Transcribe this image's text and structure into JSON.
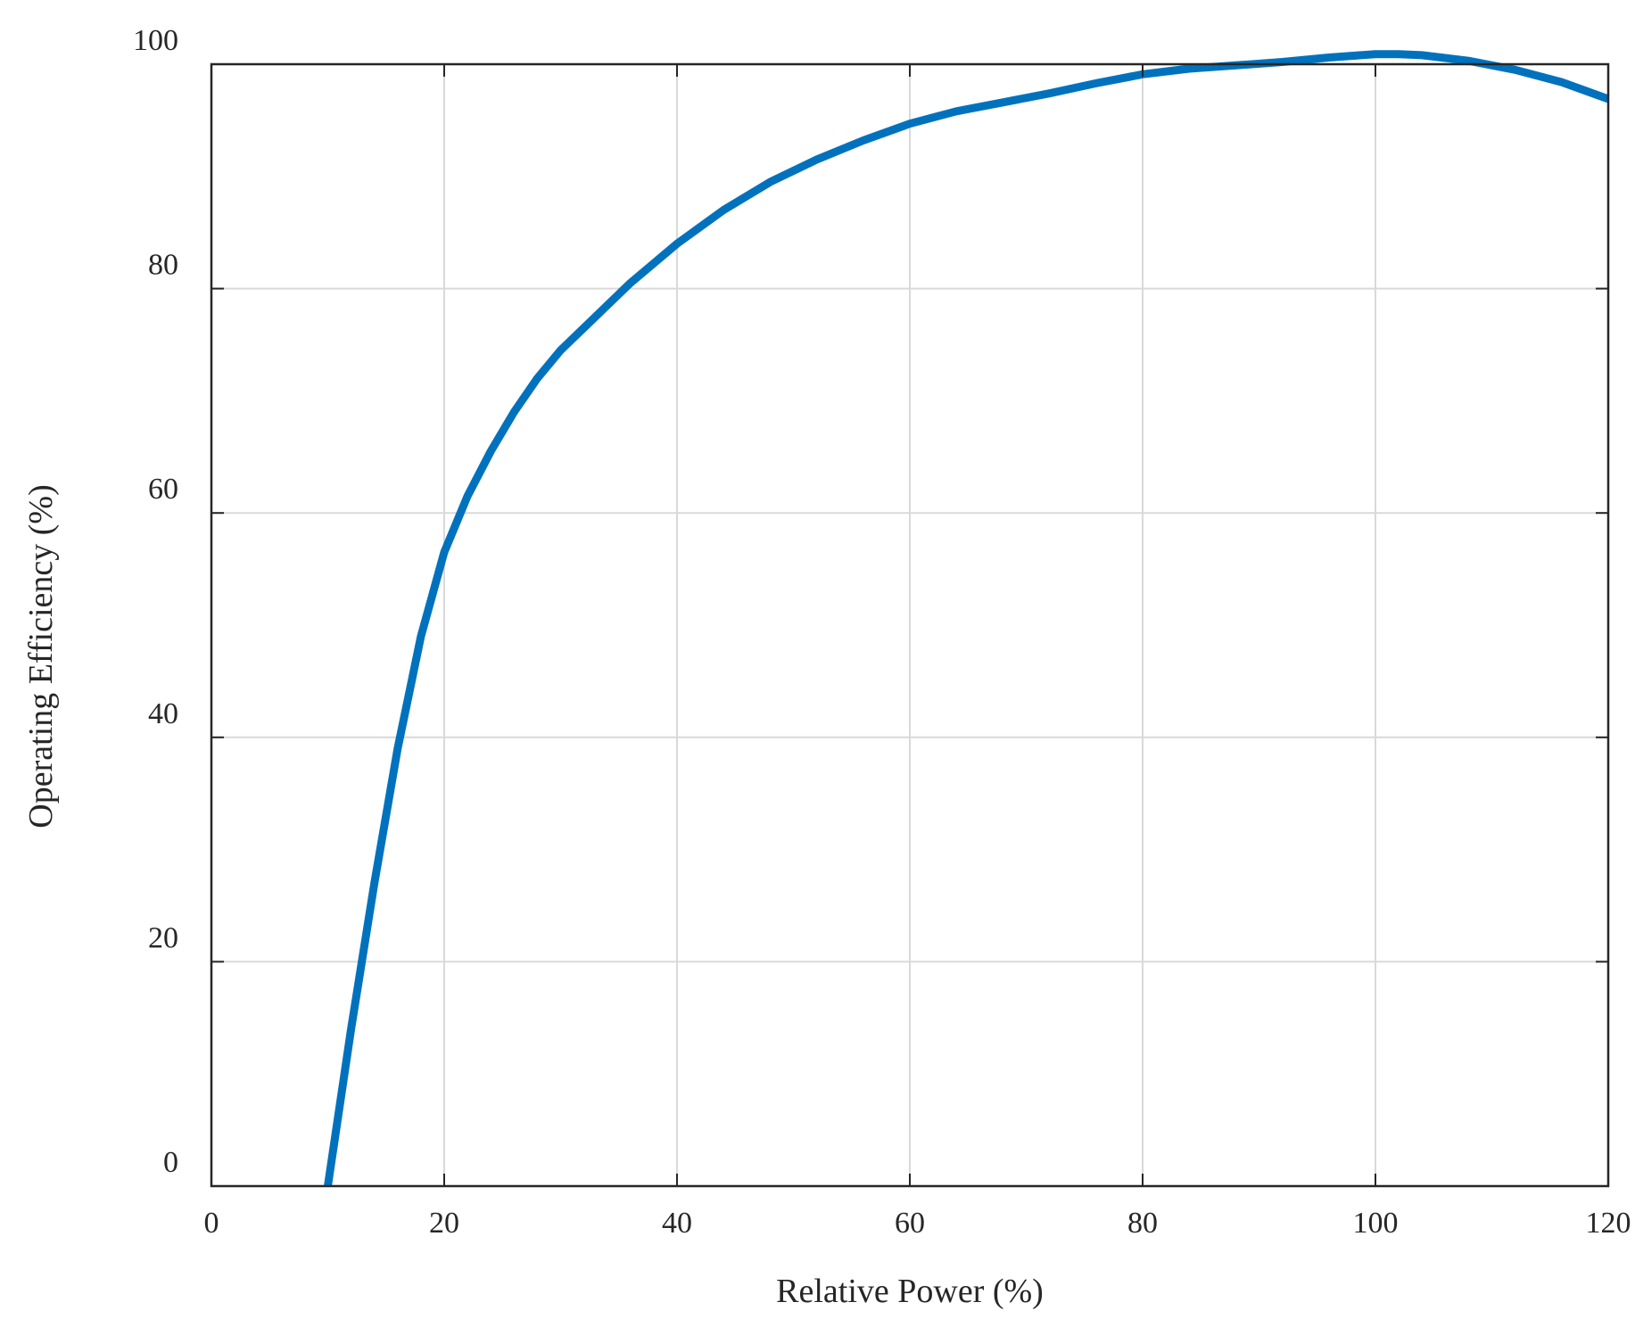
{
  "chart_data": {
    "type": "line",
    "title": "",
    "xlabel": "Relative Power (%)",
    "ylabel": "Operating Efficiency (%)",
    "xlim": [
      0,
      120
    ],
    "ylim": [
      0,
      100
    ],
    "xticks": [
      0,
      20,
      40,
      60,
      80,
      100,
      120
    ],
    "yticks": [
      0,
      20,
      40,
      60,
      80,
      100
    ],
    "grid": true,
    "legend": "none",
    "series": [
      {
        "color": "#0072BD",
        "x": [
          10,
          12,
          14,
          16,
          18,
          20,
          22,
          24,
          26,
          28,
          30,
          33,
          36,
          40,
          44,
          48,
          52,
          56,
          60,
          64,
          68,
          72,
          76,
          80,
          84,
          88,
          92,
          96,
          100,
          102,
          104,
          108,
          112,
          116,
          120
        ],
        "y": [
          0,
          14,
          27,
          39,
          49,
          56.5,
          61.5,
          65.5,
          69,
          72,
          74.5,
          77.5,
          80.5,
          84,
          87,
          89.5,
          91.5,
          93.2,
          94.7,
          95.8,
          96.6,
          97.4,
          98.3,
          99.1,
          99.6,
          99.9,
          100.2,
          100.6,
          100.9,
          100.9,
          100.8,
          100.3,
          99.5,
          98.4,
          96.9
        ]
      }
    ]
  }
}
